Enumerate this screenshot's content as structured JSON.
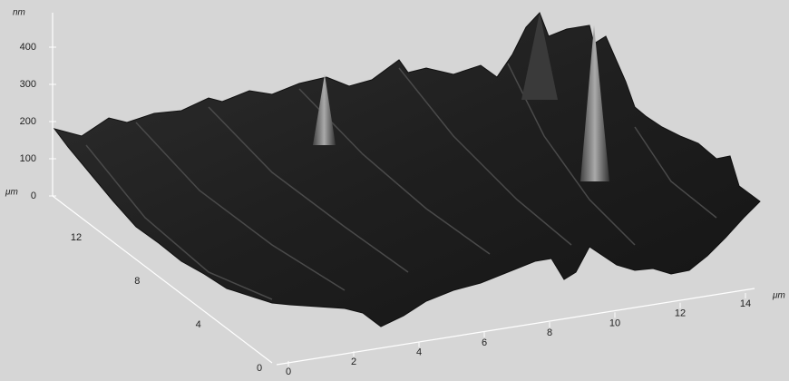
{
  "z_axis": {
    "unit": "nm",
    "ticks": [
      400,
      300,
      200,
      100,
      0
    ]
  },
  "y_axis": {
    "unit": "μm",
    "ticks": [
      12,
      8,
      4,
      0
    ]
  },
  "x_axis": {
    "unit": "μm",
    "ticks": [
      0,
      2,
      4,
      6,
      8,
      10,
      12,
      14
    ]
  }
}
